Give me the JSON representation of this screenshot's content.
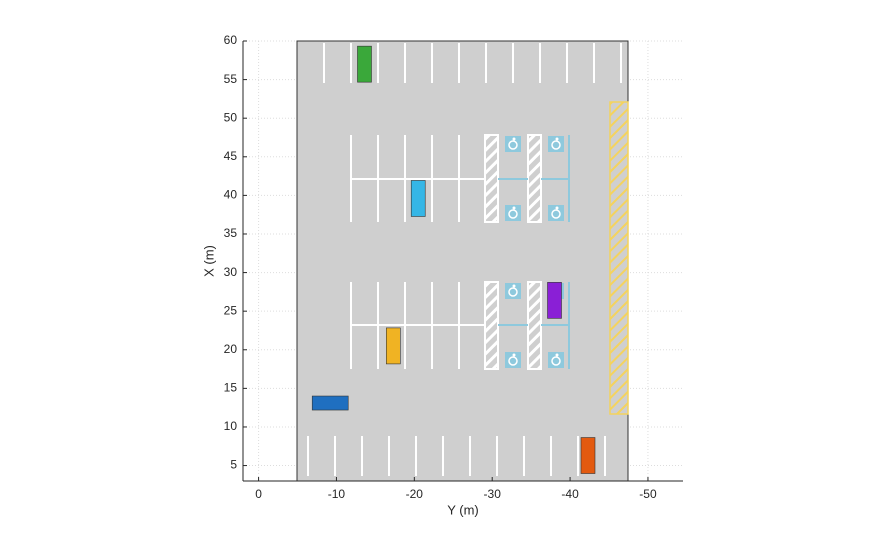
{
  "chart_data": {
    "type": "parking",
    "xlabel": "Y (m)",
    "ylabel": "X (m)",
    "xlim": [
      2,
      -54.5
    ],
    "ylim": [
      3,
      60
    ],
    "xticks": [
      0,
      -10,
      -20,
      -30,
      -40,
      -50
    ],
    "yticks": [
      5,
      10,
      15,
      20,
      25,
      30,
      35,
      40,
      45,
      50,
      55,
      60
    ],
    "grid": true,
    "vehicles": {
      "x": [
        -13.6,
        -20.5,
        -17.3,
        -38.0,
        -9.2,
        -42.3
      ],
      "y": [
        57.0,
        39.6,
        20.5,
        26.4,
        13.1,
        6.3
      ],
      "heading": [
        90,
        90,
        90,
        90,
        0,
        90
      ],
      "colors": [
        "#3aa83a",
        "#35b6e6",
        "#f0b323",
        "#8a1fd6",
        "#1f6fc0",
        "#e35a10"
      ]
    }
  }
}
